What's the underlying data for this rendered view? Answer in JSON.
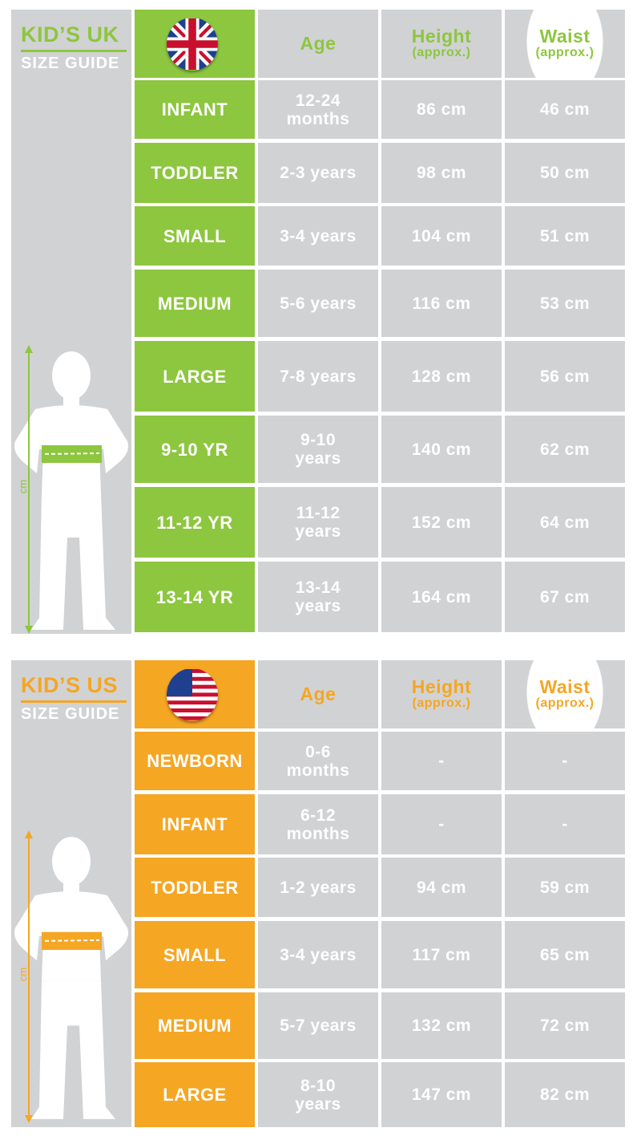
{
  "colors": {
    "uk_accent": "#8dc63f",
    "us_accent": "#f5a623",
    "panel": "#d1d2d4"
  },
  "uk": {
    "title": "KID’S UK",
    "subtitle": "SIZE GUIDE",
    "flag": "union-jack-flag-icon",
    "headers": {
      "age": "Age",
      "height": "Height",
      "height_note": "(approx.)",
      "waist": "Waist",
      "waist_note": "(approx.)"
    },
    "axis_unit": "cm",
    "rows": [
      {
        "size": "INFANT",
        "age": "12-24 months",
        "height": "86 cm",
        "waist": "46 cm"
      },
      {
        "size": "TODDLER",
        "age": "2-3 years",
        "height": "98 cm",
        "waist": "50 cm"
      },
      {
        "size": "SMALL",
        "age": "3-4 years",
        "height": "104 cm",
        "waist": "51 cm"
      },
      {
        "size": "MEDIUM",
        "age": "5-6 years",
        "height": "116 cm",
        "waist": "53 cm"
      },
      {
        "size": "LARGE",
        "age": "7-8 years",
        "height": "128 cm",
        "waist": "56 cm"
      },
      {
        "size": "9-10 YR",
        "age": "9-10 years",
        "height": "140 cm",
        "waist": "62 cm"
      },
      {
        "size": "11-12 YR",
        "age": "11-12 years",
        "height": "152 cm",
        "waist": "64 cm"
      },
      {
        "size": "13-14 YR",
        "age": "13-14 years",
        "height": "164 cm",
        "waist": "67 cm"
      }
    ]
  },
  "us": {
    "title": "KID’S US",
    "subtitle": "SIZE GUIDE",
    "flag": "us-flag-icon",
    "headers": {
      "age": "Age",
      "height": "Height",
      "height_note": "(approx.)",
      "waist": "Waist",
      "waist_note": "(approx.)"
    },
    "axis_unit": "cm",
    "rows": [
      {
        "size": "NEWBORN",
        "age": "0-6 months",
        "height": "-",
        "waist": "-"
      },
      {
        "size": "INFANT",
        "age": "6-12 months",
        "height": "-",
        "waist": "-"
      },
      {
        "size": "TODDLER",
        "age": "1-2 years",
        "height": "94 cm",
        "waist": "59 cm"
      },
      {
        "size": "SMALL",
        "age": "3-4 years",
        "height": "117 cm",
        "waist": "65 cm"
      },
      {
        "size": "MEDIUM",
        "age": "5-7 years",
        "height": "132 cm",
        "waist": "72 cm"
      },
      {
        "size": "LARGE",
        "age": "8-10 years",
        "height": "147 cm",
        "waist": "82 cm"
      }
    ]
  }
}
